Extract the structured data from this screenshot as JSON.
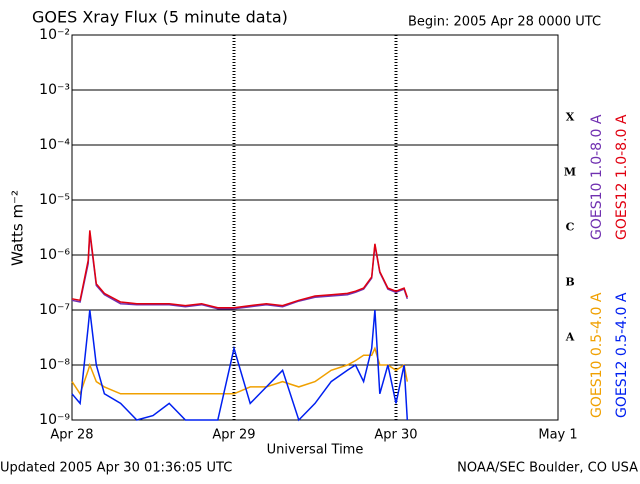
{
  "chart_data": {
    "type": "line",
    "title": "GOES Xray Flux (5 minute data)",
    "subtitle": "Begin:  2005 Apr 28 0000 UTC",
    "y_label": "Watts m⁻²",
    "x_label": "Universal Time",
    "footer_left": "Updated 2005 Apr 30 01:36:05 UTC",
    "footer_right": "NOAA/SEC Boulder, CO USA",
    "flare_classes": [
      "X",
      "M",
      "C",
      "B",
      "A"
    ],
    "log_y": true,
    "grid": true,
    "xlim": [
      0,
      3
    ],
    "xticks": [
      {
        "value": 0,
        "label": "Apr 28"
      },
      {
        "value": 1,
        "label": "Apr 29"
      },
      {
        "value": 2,
        "label": "Apr 30"
      },
      {
        "value": 3,
        "label": "May 1"
      }
    ],
    "ylim": [
      1e-09,
      0.01
    ],
    "yticks": [
      {
        "value": 1e-09,
        "label": "10⁻⁹"
      },
      {
        "value": 1e-08,
        "label": "10⁻⁸"
      },
      {
        "value": 1e-07,
        "label": "10⁻⁷"
      },
      {
        "value": 1e-06,
        "label": "10⁻⁶"
      },
      {
        "value": 1e-05,
        "label": "10⁻⁵"
      },
      {
        "value": 0.0001,
        "label": "10⁻⁴"
      },
      {
        "value": 0.001,
        "label": "10⁻³"
      },
      {
        "value": 0.01,
        "label": "10⁻²"
      }
    ],
    "x": [
      0,
      0.05,
      0.1,
      0.11,
      0.15,
      0.2,
      0.3,
      0.4,
      0.5,
      0.6,
      0.7,
      0.8,
      0.9,
      1.0,
      1.1,
      1.2,
      1.3,
      1.4,
      1.5,
      1.6,
      1.7,
      1.75,
      1.8,
      1.85,
      1.87,
      1.9,
      1.95,
      2.0,
      2.05,
      2.07
    ],
    "series": [
      {
        "name": "GOES10 1.0-8.0 A",
        "color": "#7030b0",
        "values": [
          1.5e-07,
          1.4e-07,
          7e-07,
          2.5e-06,
          2.8e-07,
          1.9e-07,
          1.3e-07,
          1.25e-07,
          1.25e-07,
          1.25e-07,
          1.15e-07,
          1.25e-07,
          1.05e-07,
          1.05e-07,
          1.15e-07,
          1.25e-07,
          1.15e-07,
          1.45e-07,
          1.7e-07,
          1.8e-07,
          1.9e-07,
          2.1e-07,
          2.4e-07,
          3.8e-07,
          1.5e-06,
          4.8e-07,
          2.4e-07,
          2.1e-07,
          2.4e-07,
          1.6e-07
        ]
      },
      {
        "name": "GOES12 1.0-8.0 A",
        "color": "#e00010",
        "values": [
          1.6e-07,
          1.5e-07,
          8e-07,
          2.8e-06,
          3e-07,
          2e-07,
          1.4e-07,
          1.3e-07,
          1.3e-07,
          1.3e-07,
          1.2e-07,
          1.3e-07,
          1.1e-07,
          1.1e-07,
          1.2e-07,
          1.3e-07,
          1.2e-07,
          1.5e-07,
          1.8e-07,
          1.9e-07,
          2e-07,
          2.2e-07,
          2.5e-07,
          4e-07,
          1.6e-06,
          5e-07,
          2.5e-07,
          2.2e-07,
          2.5e-07,
          1.7e-07
        ]
      },
      {
        "name": "GOES10 0.5-4.0 A",
        "color": "#f0a000",
        "values": [
          5e-09,
          3e-09,
          8e-09,
          1e-08,
          5e-09,
          4e-09,
          3e-09,
          3e-09,
          3e-09,
          3e-09,
          3e-09,
          3e-09,
          3e-09,
          3e-09,
          4e-09,
          4e-09,
          5e-09,
          4e-09,
          5e-09,
          8e-09,
          1e-08,
          1.2e-08,
          1.5e-08,
          1.5e-08,
          2e-08,
          1e-08,
          1e-08,
          8e-09,
          1e-08,
          5e-09
        ]
      },
      {
        "name": "GOES12 0.5-4.0 A",
        "color": "#0020f0",
        "values": [
          3e-09,
          2e-09,
          5e-08,
          1e-07,
          1e-08,
          3e-09,
          2e-09,
          1e-09,
          1.2e-09,
          2e-09,
          1e-09,
          1e-09,
          1e-09,
          2e-08,
          2e-09,
          4e-09,
          8e-09,
          1e-09,
          2e-09,
          5e-09,
          8e-09,
          1e-08,
          5e-09,
          2e-08,
          1e-07,
          3e-09,
          1e-08,
          2e-09,
          1e-08,
          1e-09
        ]
      }
    ]
  }
}
